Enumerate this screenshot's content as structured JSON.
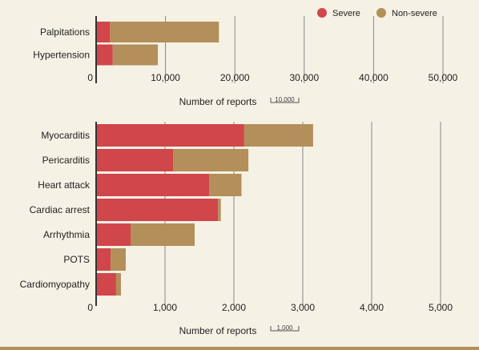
{
  "legend": [
    {
      "name": "Severe",
      "color": "#d0464a"
    },
    {
      "name": "Non-severe",
      "color": "#b38f5a"
    }
  ],
  "colors": {
    "background": "#f5f1e5",
    "grid": "#888888",
    "bottom_rule": "#b38f5a"
  },
  "chart_data": [
    {
      "type": "bar",
      "orientation": "horizontal",
      "stacked": true,
      "categories": [
        "Palpitations",
        "Hypertension"
      ],
      "series": [
        {
          "name": "Severe",
          "values": [
            2000,
            2400
          ]
        },
        {
          "name": "Non-severe",
          "values": [
            15700,
            6500
          ]
        }
      ],
      "xlim": [
        0,
        50000
      ],
      "xticks": [
        0,
        10000,
        20000,
        30000,
        40000,
        50000
      ],
      "xtick_labels": [
        "0",
        "10,000",
        "20,000",
        "30,000",
        "40,000",
        "50,000"
      ],
      "xlabel": "Number of reports",
      "scale_label": "10,000"
    },
    {
      "type": "bar",
      "orientation": "horizontal",
      "stacked": true,
      "categories": [
        "Myocarditis",
        "Pericarditis",
        "Heart attack",
        "Cardiac arrest",
        "Arrhythmia",
        "POTS",
        "Cardiomyopathy"
      ],
      "series": [
        {
          "name": "Severe",
          "values": [
            2150,
            1120,
            1640,
            1770,
            500,
            210,
            290
          ]
        },
        {
          "name": "Non-severe",
          "values": [
            1000,
            1090,
            470,
            40,
            930,
            220,
            70
          ]
        }
      ],
      "xlim": [
        0,
        5000
      ],
      "xticks": [
        0,
        1000,
        2000,
        3000,
        4000,
        5000
      ],
      "xtick_labels": [
        "0",
        "1,000",
        "2,000",
        "3,000",
        "4,000",
        "5,000"
      ],
      "xlabel": "Number of reports",
      "scale_label": "1,000"
    }
  ]
}
